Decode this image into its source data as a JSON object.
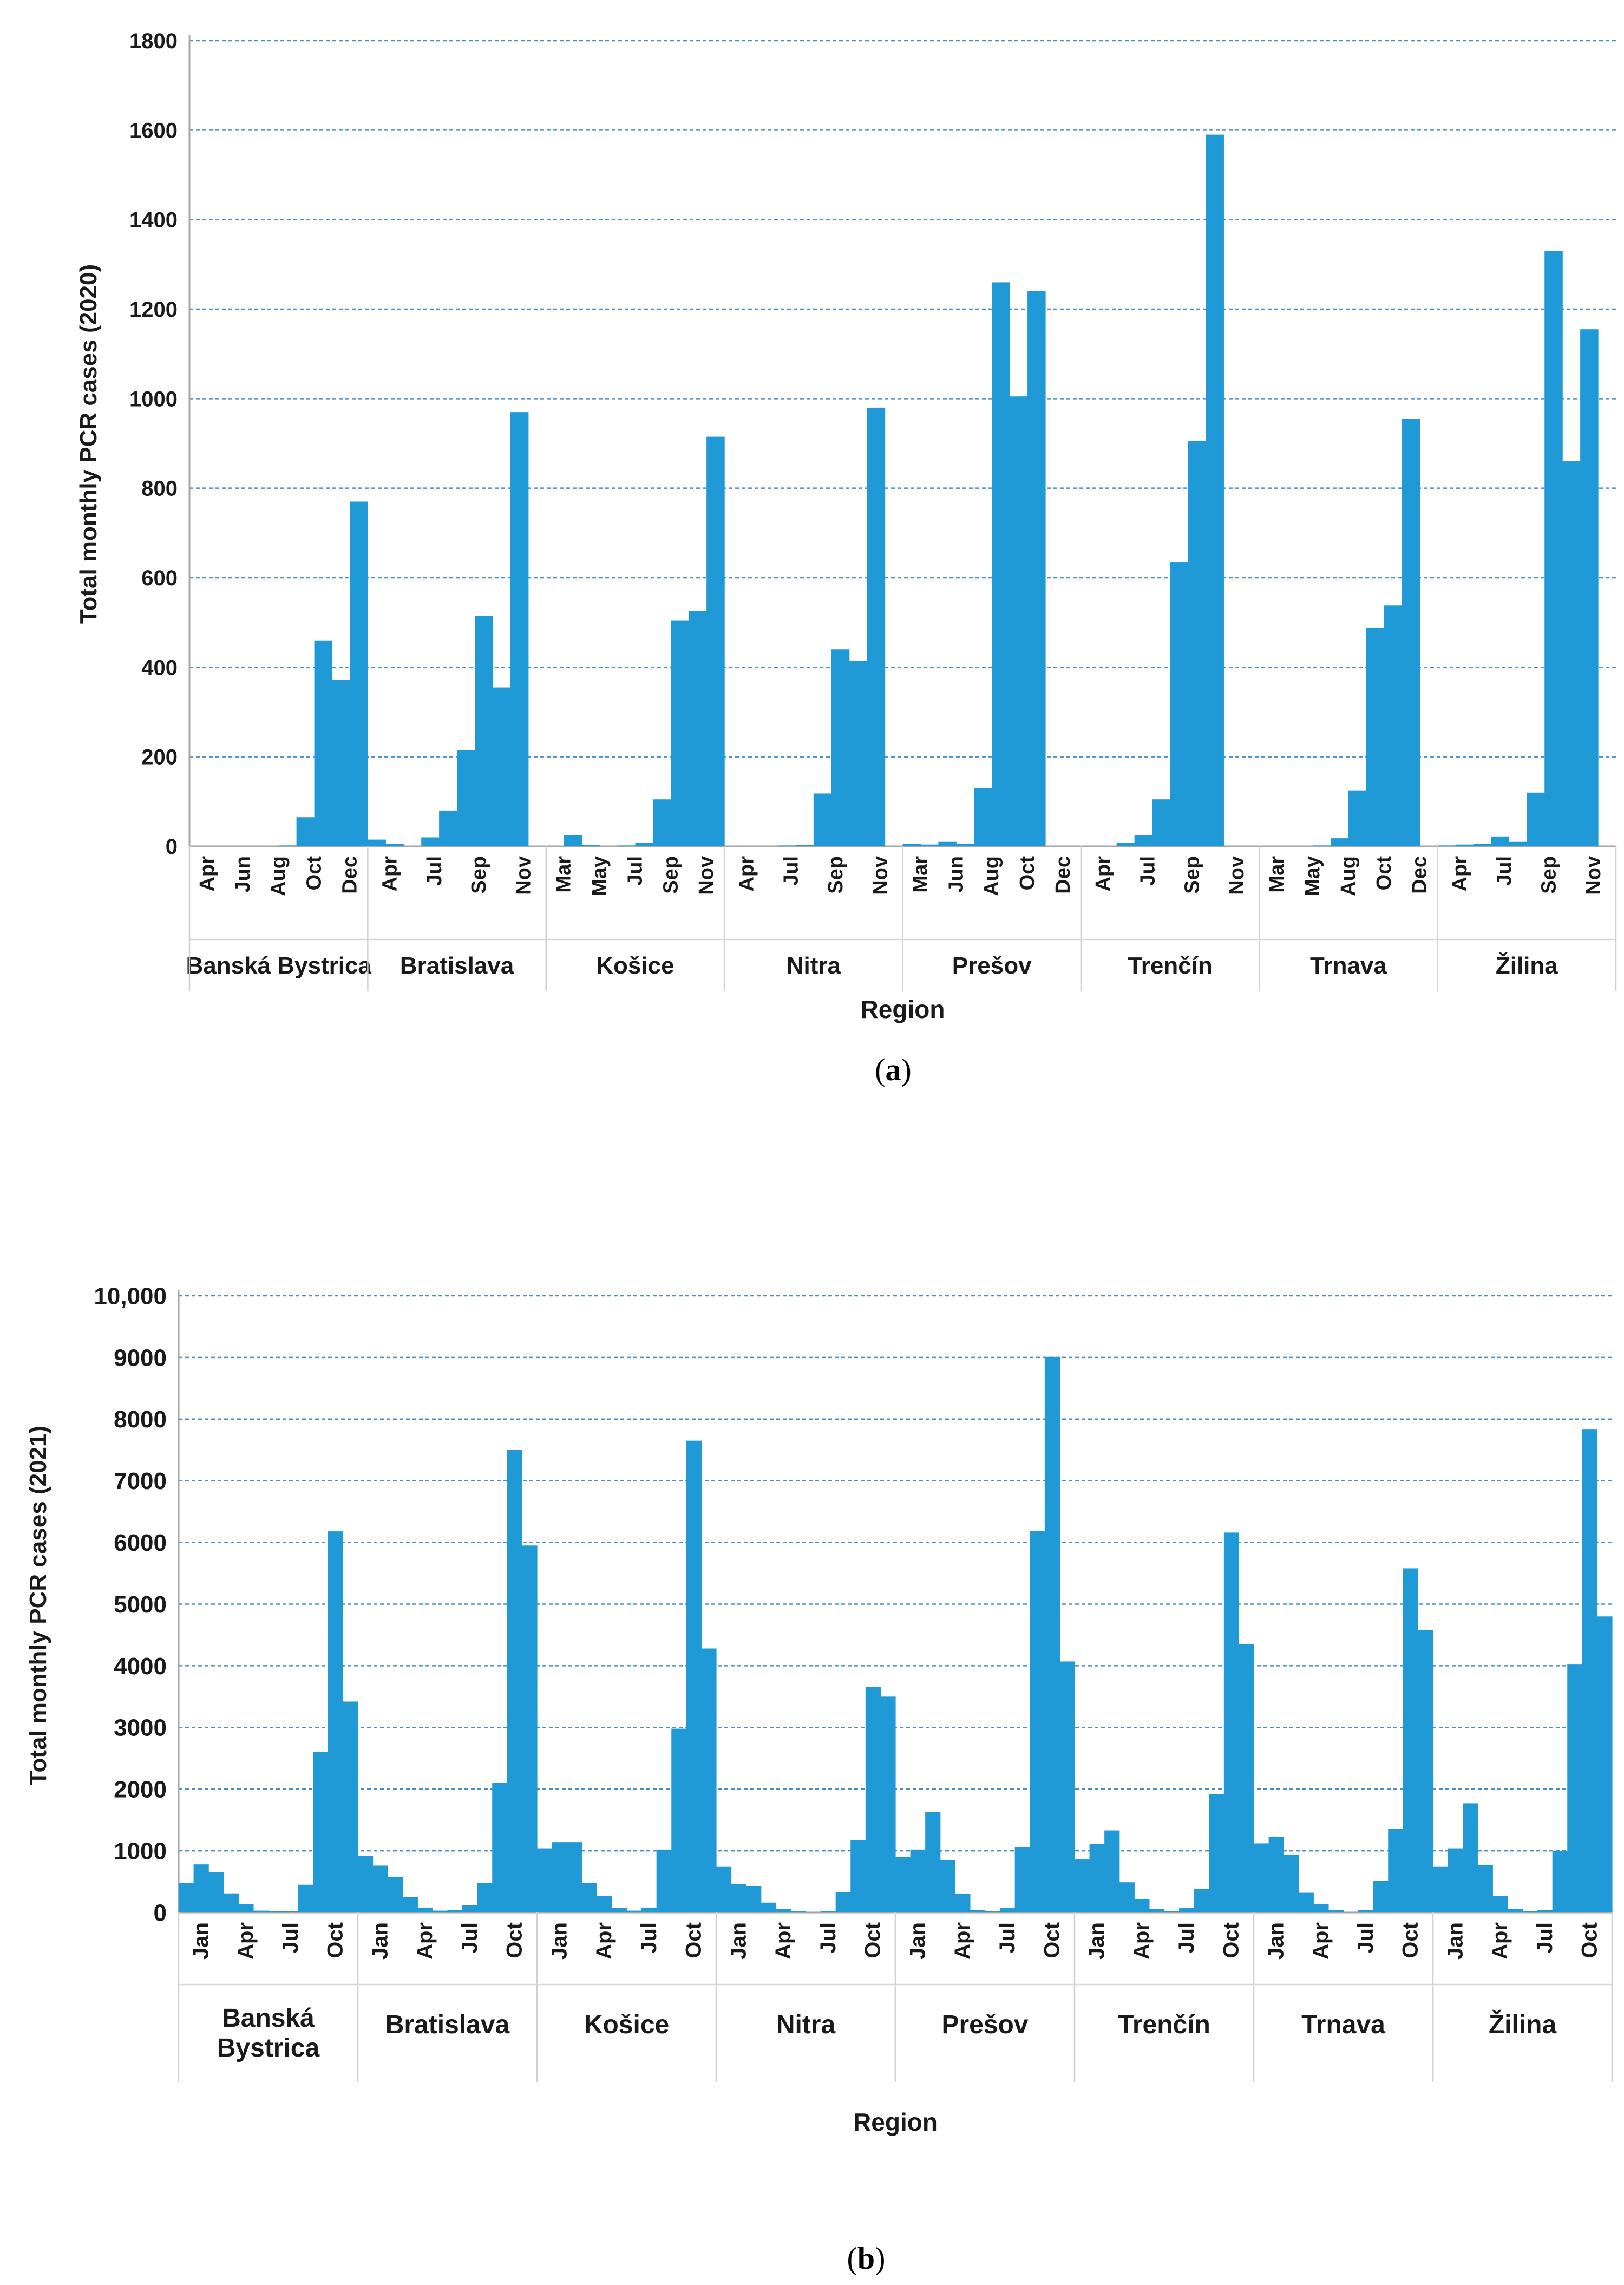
{
  "figure": {
    "panel_a_label": "a",
    "panel_b_label": "b"
  },
  "colors": {
    "bar": "#1F9AD6",
    "grid": "#4A8FC4",
    "axis": "#a6a6a6",
    "text": "#1a1a1a"
  },
  "chart_data": [
    {
      "type": "bar",
      "title": "",
      "xlabel": "Region",
      "ylabel": "Total monthly PCR cases (2020)",
      "ylim": [
        0,
        1800
      ],
      "yticks": [
        0,
        200,
        400,
        600,
        800,
        1000,
        1200,
        1400,
        1600,
        1800
      ],
      "ytick_labels": [
        "0",
        "200",
        "400",
        "600",
        "800",
        "1000",
        "1200",
        "1400",
        "1600",
        "1800"
      ],
      "grid": true,
      "groups": [
        {
          "region": "Banská Bystrica",
          "months": [
            "Mar",
            "Apr",
            "May",
            "Jun",
            "Jul",
            "Aug",
            "Sep",
            "Oct",
            "Nov",
            "Dec"
          ],
          "values": [
            0,
            0,
            0,
            0,
            0,
            2,
            65,
            460,
            372,
            770
          ],
          "tick_labels": [
            "Apr",
            "Jun",
            "Aug",
            "Oct",
            "Dec"
          ]
        },
        {
          "region": "Bratislava",
          "months": [
            "Mar",
            "Apr",
            "May",
            "Jun",
            "Jul",
            "Aug",
            "Sep",
            "Oct",
            "Nov",
            "Dec"
          ],
          "values": [
            15,
            6,
            0,
            20,
            80,
            215,
            515,
            355,
            970,
            0
          ],
          "tick_labels": [
            "Apr",
            "Jul",
            "Sep",
            "Nov"
          ]
        },
        {
          "region": "Košice",
          "months": [
            "Mar",
            "Apr",
            "May",
            "Jun",
            "Jul",
            "Aug",
            "Sep",
            "Oct",
            "Nov",
            "Dec"
          ],
          "values": [
            0,
            25,
            3,
            0,
            2,
            8,
            105,
            505,
            525,
            915
          ],
          "tick_labels": [
            "Mar",
            "May",
            "Jul",
            "Sep",
            "Nov"
          ]
        },
        {
          "region": "Nitra",
          "months": [
            "Mar",
            "Apr",
            "May",
            "Jun",
            "Jul",
            "Aug",
            "Sep",
            "Oct",
            "Nov",
            "Dec"
          ],
          "values": [
            0,
            0,
            0,
            2,
            3,
            118,
            440,
            415,
            980,
            0
          ],
          "tick_labels": [
            "Apr",
            "Jul",
            "Sep",
            "Nov"
          ]
        },
        {
          "region": "Prešov",
          "months": [
            "Mar",
            "Apr",
            "May",
            "Jun",
            "Jul",
            "Aug",
            "Sep",
            "Oct",
            "Nov",
            "Dec"
          ],
          "values": [
            6,
            4,
            10,
            6,
            130,
            1260,
            1005,
            1240,
            0,
            0
          ],
          "tick_labels": [
            "Mar",
            "Jun",
            "Aug",
            "Oct",
            "Dec"
          ]
        },
        {
          "region": "Trenčín",
          "months": [
            "Mar",
            "Apr",
            "May",
            "Jun",
            "Jul",
            "Aug",
            "Sep",
            "Oct",
            "Nov",
            "Dec"
          ],
          "values": [
            0,
            0,
            8,
            25,
            105,
            635,
            905,
            1590,
            0,
            0
          ],
          "tick_labels": [
            "Apr",
            "Jul",
            "Sep",
            "Nov"
          ]
        },
        {
          "region": "Trnava",
          "months": [
            "Mar",
            "Apr",
            "May",
            "Jun",
            "Jul",
            "Aug",
            "Sep",
            "Oct",
            "Nov",
            "Dec"
          ],
          "values": [
            0,
            0,
            0,
            2,
            18,
            125,
            488,
            538,
            955,
            0
          ],
          "tick_labels": [
            "Mar",
            "May",
            "Aug",
            "Oct",
            "Dec"
          ]
        },
        {
          "region": "Žilina",
          "months": [
            "Mar",
            "Apr",
            "May",
            "Jun",
            "Jul",
            "Aug",
            "Sep",
            "Oct",
            "Nov",
            "Dec"
          ],
          "values": [
            2,
            4,
            5,
            22,
            10,
            120,
            1330,
            860,
            1155,
            0
          ],
          "tick_labels": [
            "Apr",
            "Jul",
            "Sep",
            "Nov"
          ]
        }
      ]
    },
    {
      "type": "bar",
      "title": "",
      "xlabel": "Region",
      "ylabel": "Total monthly PCR cases (2021)",
      "ylim": [
        0,
        10000
      ],
      "yticks": [
        0,
        1000,
        2000,
        3000,
        4000,
        5000,
        6000,
        7000,
        8000,
        9000,
        10000
      ],
      "ytick_labels": [
        "0",
        "1000",
        "2000",
        "3000",
        "4000",
        "5000",
        "6000",
        "7000",
        "8000",
        "9000",
        "10,000"
      ],
      "grid": true,
      "groups": [
        {
          "region": "Banská Bystrica",
          "months": [
            "Jan",
            "Feb",
            "Mar",
            "Apr",
            "May",
            "Jun",
            "Jul",
            "Aug",
            "Sep",
            "Oct",
            "Nov",
            "Dec"
          ],
          "values": [
            480,
            780,
            650,
            310,
            140,
            30,
            20,
            20,
            450,
            2600,
            6180,
            3420
          ],
          "tick_labels": [
            "Jan",
            "Apr",
            "Jul",
            "Oct"
          ]
        },
        {
          "region": "Bratislava",
          "months": [
            "Jan",
            "Feb",
            "Mar",
            "Apr",
            "May",
            "Jun",
            "Jul",
            "Aug",
            "Sep",
            "Oct",
            "Nov",
            "Dec"
          ],
          "values": [
            920,
            760,
            580,
            250,
            80,
            30,
            40,
            120,
            480,
            2100,
            7500,
            5950
          ],
          "tick_labels": [
            "Jan",
            "Apr",
            "Jul",
            "Oct"
          ]
        },
        {
          "region": "Košice",
          "months": [
            "Jan",
            "Feb",
            "Mar",
            "Apr",
            "May",
            "Jun",
            "Jul",
            "Aug",
            "Sep",
            "Oct",
            "Nov",
            "Dec"
          ],
          "values": [
            1040,
            1140,
            1140,
            480,
            270,
            70,
            30,
            80,
            1020,
            2980,
            7650,
            4280
          ],
          "tick_labels": [
            "Jan",
            "Apr",
            "Jul",
            "Oct"
          ]
        },
        {
          "region": "Nitra",
          "months": [
            "Jan",
            "Feb",
            "Mar",
            "Apr",
            "May",
            "Jun",
            "Jul",
            "Aug",
            "Sep",
            "Oct",
            "Nov",
            "Dec"
          ],
          "values": [
            740,
            460,
            430,
            160,
            60,
            20,
            10,
            20,
            330,
            1170,
            3660,
            3500
          ],
          "tick_labels": [
            "Jan",
            "Apr",
            "Jul",
            "Oct"
          ]
        },
        {
          "region": "Prešov",
          "months": [
            "Jan",
            "Feb",
            "Mar",
            "Apr",
            "May",
            "Jun",
            "Jul",
            "Aug",
            "Sep",
            "Oct",
            "Nov",
            "Dec"
          ],
          "values": [
            900,
            1020,
            1630,
            850,
            300,
            40,
            20,
            70,
            1060,
            6190,
            9010,
            4070
          ],
          "tick_labels": [
            "Jan",
            "Apr",
            "Jul",
            "Oct"
          ]
        },
        {
          "region": "Trenčín",
          "months": [
            "Jan",
            "Feb",
            "Mar",
            "Apr",
            "May",
            "Jun",
            "Jul",
            "Aug",
            "Sep",
            "Oct",
            "Nov",
            "Dec"
          ],
          "values": [
            860,
            1110,
            1330,
            490,
            220,
            60,
            20,
            70,
            380,
            1920,
            6160,
            4350
          ],
          "tick_labels": [
            "Jan",
            "Apr",
            "Jul",
            "Oct"
          ]
        },
        {
          "region": "Trnava",
          "months": [
            "Jan",
            "Feb",
            "Mar",
            "Apr",
            "May",
            "Jun",
            "Jul",
            "Aug",
            "Sep",
            "Oct",
            "Nov",
            "Dec"
          ],
          "values": [
            1120,
            1230,
            940,
            320,
            140,
            40,
            10,
            40,
            510,
            1360,
            5580,
            4580
          ],
          "tick_labels": [
            "Jan",
            "Apr",
            "Jul",
            "Oct"
          ]
        },
        {
          "region": "Žilina",
          "months": [
            "Jan",
            "Feb",
            "Mar",
            "Apr",
            "May",
            "Jun",
            "Jul",
            "Aug",
            "Sep",
            "Oct",
            "Nov",
            "Dec"
          ],
          "values": [
            740,
            1040,
            1770,
            770,
            270,
            60,
            20,
            40,
            1000,
            4020,
            7830,
            4800
          ],
          "tick_labels": [
            "Jan",
            "Apr",
            "Jul",
            "Oct"
          ]
        }
      ]
    }
  ]
}
